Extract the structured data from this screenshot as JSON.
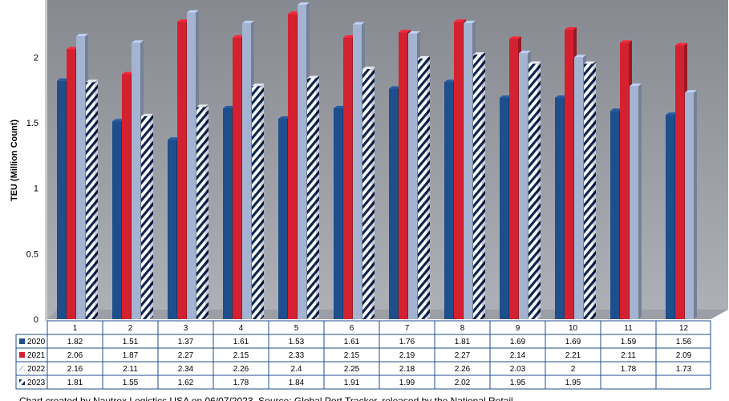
{
  "chart_data": {
    "type": "bar",
    "ylabel": "TEU (Million Count)",
    "categories": [
      "1",
      "2",
      "3",
      "4",
      "5",
      "6",
      "7",
      "8",
      "9",
      "10",
      "11",
      "12"
    ],
    "ylim": [
      0,
      2.4
    ],
    "yticks": [
      0,
      0.5,
      1,
      1.5,
      2
    ],
    "series": [
      {
        "name": "2020",
        "color": "#1f4e8c",
        "pattern": "solid",
        "values": [
          1.82,
          1.51,
          1.37,
          1.61,
          1.53,
          1.61,
          1.76,
          1.81,
          1.69,
          1.69,
          1.59,
          1.56
        ]
      },
      {
        "name": "2021",
        "color": "#d4212f",
        "pattern": "solid",
        "values": [
          2.06,
          1.87,
          2.27,
          2.15,
          2.33,
          2.15,
          2.19,
          2.27,
          2.14,
          2.21,
          2.11,
          2.09
        ]
      },
      {
        "name": "2022",
        "color": "#a3b3d1",
        "pattern": "solid",
        "values": [
          2.16,
          2.11,
          2.34,
          2.26,
          2.4,
          2.25,
          2.18,
          2.26,
          2.03,
          2,
          1.78,
          1.73
        ]
      },
      {
        "name": "2023",
        "color": "#0d2350",
        "pattern": "stripes",
        "values": [
          1.81,
          1.55,
          1.62,
          1.78,
          1.84,
          1.91,
          1.99,
          2.02,
          1.95,
          1.95,
          null,
          null
        ]
      }
    ],
    "data_table": true,
    "grid": false
  },
  "footer": {
    "text": "Chart created by Nautrex Logistics USA on 06/07/2023. Source: Global Port Tracker, released by the National Retail"
  }
}
